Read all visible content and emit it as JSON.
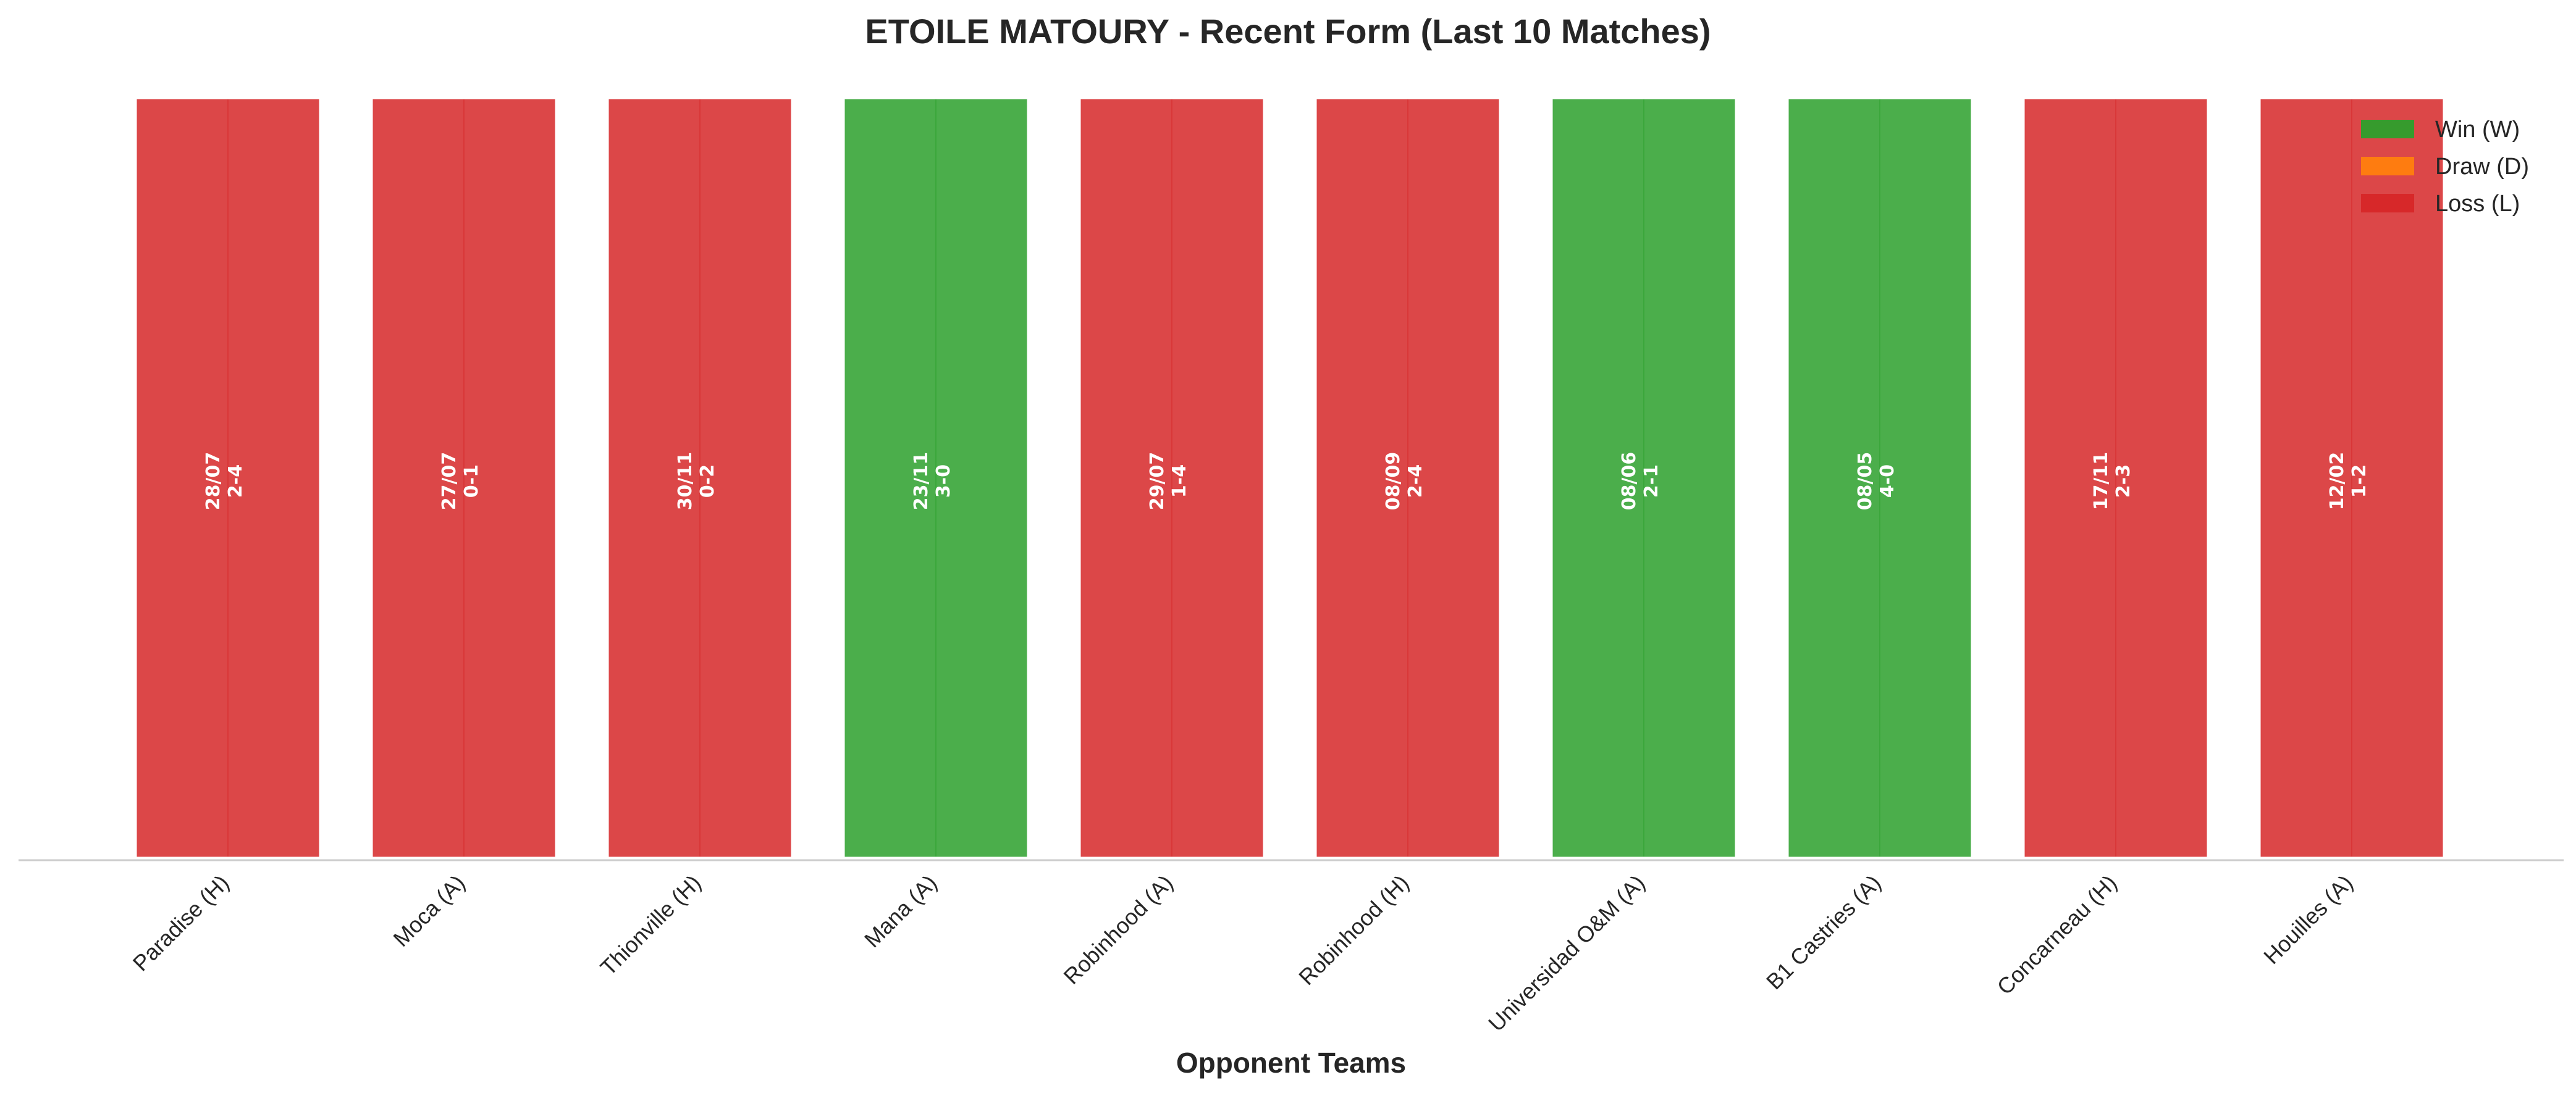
{
  "chart_data": {
    "type": "bar",
    "title": "ETOILE MATOURY - Recent Form (Last 10 Matches)",
    "xlabel": "Opponent Teams",
    "ylabel": "",
    "ylim": [
      0,
      1
    ],
    "grid": false,
    "legend_position": "top-right",
    "categories": [
      "Paradise (H)",
      "Moca (A)",
      "Thionville (H)",
      "Mana (A)",
      "Robinhood (A)",
      "Robinhood (H)",
      "Universidad O&M (A)",
      "B1 Castries (A)",
      "Concarneau (H)",
      "Houilles (A)"
    ],
    "values": [
      1,
      1,
      1,
      1,
      1,
      1,
      1,
      1,
      1,
      1
    ],
    "results": [
      "L",
      "L",
      "L",
      "W",
      "L",
      "L",
      "W",
      "W",
      "L",
      "L"
    ],
    "dates": [
      "28/07",
      "27/07",
      "30/11",
      "23/11",
      "29/07",
      "08/09",
      "08/06",
      "08/05",
      "17/11",
      "12/02"
    ],
    "scores": [
      "2-4",
      "0-1",
      "0-2",
      "3-0",
      "1-4",
      "2-4",
      "2-1",
      "4-0",
      "2-3",
      "1-2"
    ],
    "legend": [
      {
        "key": "W",
        "label": "Win (W)",
        "color": "#2ca02c"
      },
      {
        "key": "D",
        "label": "Draw (D)",
        "color": "#ff7f0e"
      },
      {
        "key": "L",
        "label": "Loss (L)",
        "color": "#d62728"
      }
    ],
    "colors": {
      "W": "#2ca02c",
      "D": "#ff7f0e",
      "L": "#d62728"
    }
  }
}
